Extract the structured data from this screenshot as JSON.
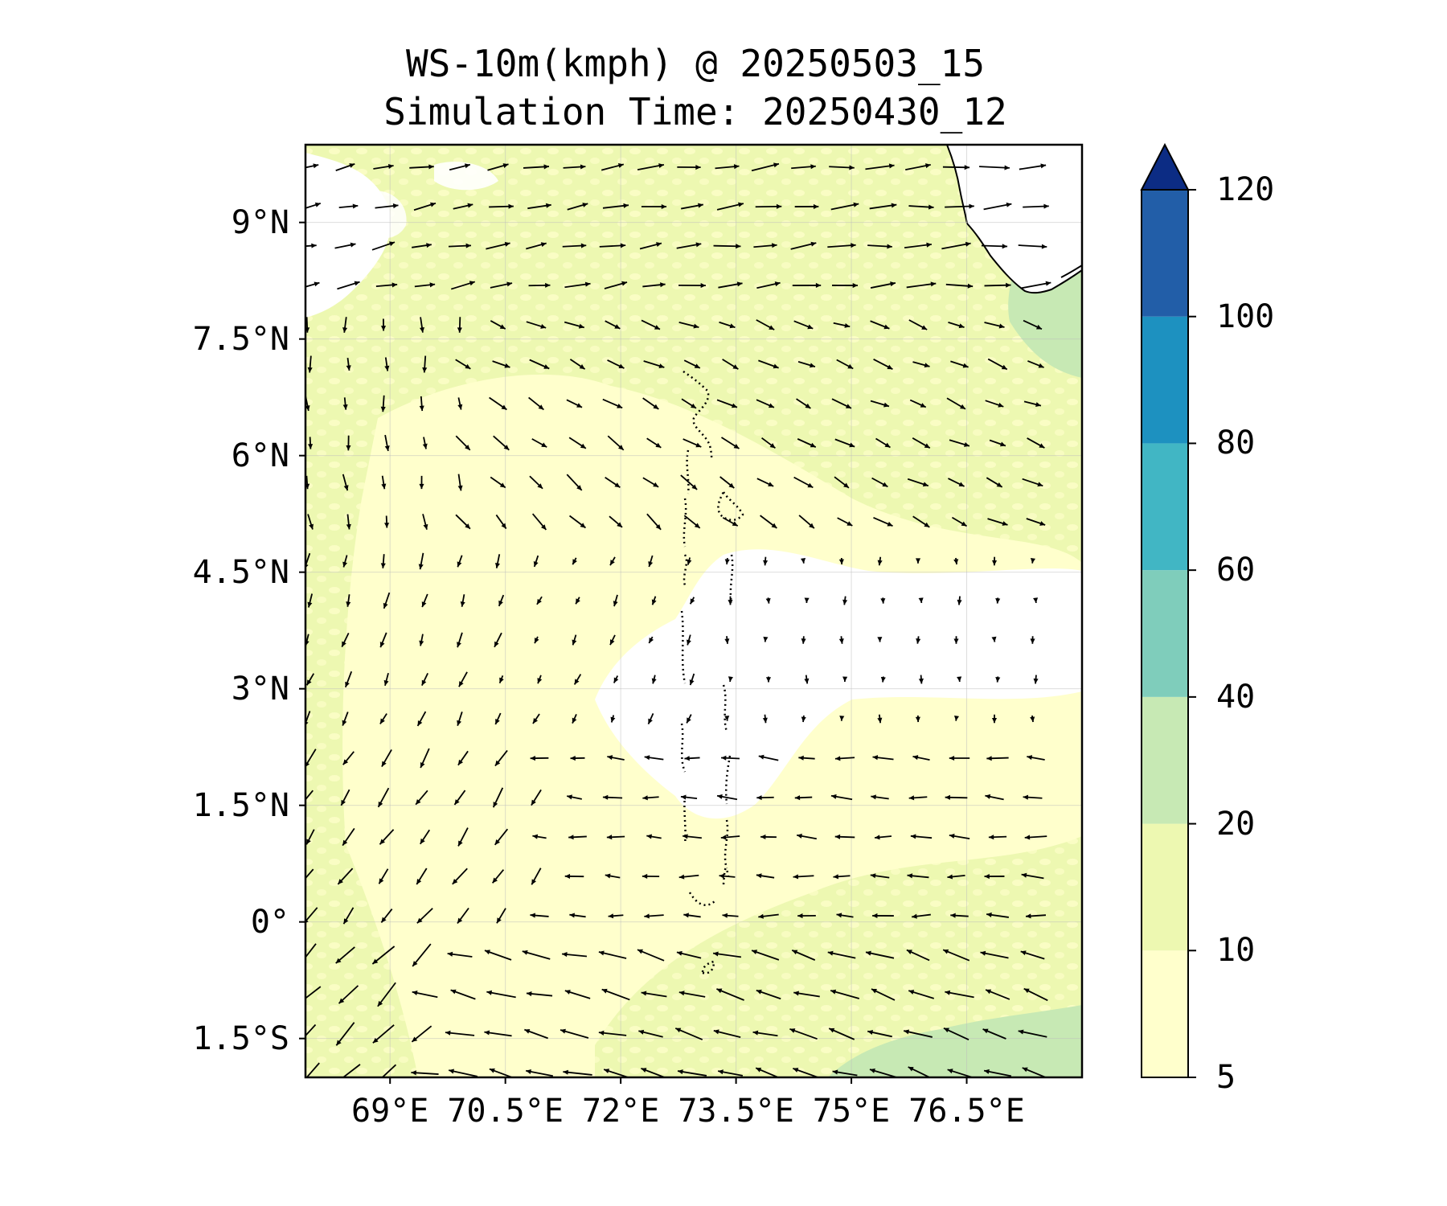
{
  "title": {
    "line1": "WS-10m(kmph) @ 20250503_15",
    "line2": "Simulation Time: 20250430_12"
  },
  "map": {
    "variable": "10 m wind speed (kmph) with wind direction arrows",
    "lat_range": [
      -2.0,
      10.0
    ],
    "lon_range": [
      67.9,
      78.0
    ],
    "lat_ticks": [
      {
        "value": 9.0,
        "label": "9°N"
      },
      {
        "value": 7.5,
        "label": "7.5°N"
      },
      {
        "value": 6.0,
        "label": "6°N"
      },
      {
        "value": 4.5,
        "label": "4.5°N"
      },
      {
        "value": 3.0,
        "label": "3°N"
      },
      {
        "value": 1.5,
        "label": "1.5°N"
      },
      {
        "value": 0.0,
        "label": "0°"
      },
      {
        "value": -1.5,
        "label": "1.5°S"
      }
    ],
    "lon_ticks": [
      {
        "value": 69.0,
        "label": "69°E"
      },
      {
        "value": 70.5,
        "label": "70.5°E"
      },
      {
        "value": 72.0,
        "label": "72°E"
      },
      {
        "value": 73.5,
        "label": "73.5°E"
      },
      {
        "value": 75.0,
        "label": "75°E"
      },
      {
        "value": 76.5,
        "label": "76.5°E"
      }
    ],
    "gridlines": true,
    "features": [
      "India southwest coastline (top-right)",
      "Maldives atolls (dotted, center)"
    ]
  },
  "colorbar": {
    "levels": [
      5,
      10,
      20,
      40,
      60,
      80,
      100,
      120
    ],
    "labels": [
      "5",
      "10",
      "20",
      "40",
      "60",
      "80",
      "100",
      "120"
    ],
    "colors": [
      "#ffffcc",
      "#edf8b1",
      "#c7e9b4",
      "#7fcdbb",
      "#41b6c4",
      "#1d91c0",
      "#225ea8",
      "#0c2c84"
    ],
    "extend": "max"
  }
}
